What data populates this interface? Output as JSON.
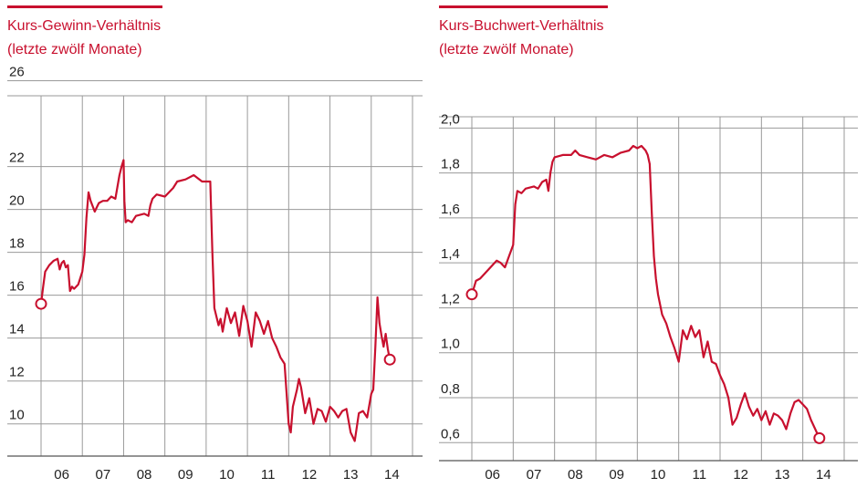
{
  "colors": {
    "accent": "#c8102e",
    "grid": "#9a9a9a",
    "axis_text": "#222222",
    "marker_fill": "#ffffff"
  },
  "chart_data": [
    {
      "type": "line",
      "title": "Kurs-Gewinn-Verhältnis",
      "subtitle": "(letzte zwölf Monate)",
      "x_tick_labels": [
        "06",
        "07",
        "08",
        "09",
        "10",
        "11",
        "12",
        "13",
        "14"
      ],
      "y_tick_labels": [
        "26",
        "22",
        "20",
        "18",
        "16",
        "14",
        "12",
        "10"
      ],
      "xlim": [
        2006.0,
        2015.0
      ],
      "ylim": [
        8.5,
        25.3
      ],
      "grid": true,
      "series": [
        {
          "x": [
            2006.0,
            2006.05,
            2006.1,
            2006.2,
            2006.3,
            2006.4,
            2006.45,
            2006.5,
            2006.55,
            2006.6,
            2006.65,
            2006.7,
            2006.75,
            2006.8,
            2006.9,
            2007.0,
            2007.05,
            2007.1,
            2007.15,
            2007.2,
            2007.3,
            2007.4,
            2007.5,
            2007.6,
            2007.7,
            2007.8,
            2007.9,
            2007.95,
            2008.0,
            2008.02,
            2008.05,
            2008.1,
            2008.2,
            2008.3,
            2008.5,
            2008.6,
            2008.65,
            2008.7,
            2008.8,
            2009.0,
            2009.2,
            2009.3,
            2009.5,
            2009.7,
            2009.9,
            2010.0,
            2010.1,
            2010.15,
            2010.2,
            2010.25,
            2010.3,
            2010.35,
            2010.4,
            2010.5,
            2010.6,
            2010.7,
            2010.8,
            2010.9,
            2011.0,
            2011.1,
            2011.2,
            2011.3,
            2011.4,
            2011.5,
            2011.6,
            2011.7,
            2011.8,
            2011.9,
            2012.0,
            2012.05,
            2012.1,
            2012.2,
            2012.25,
            2012.3,
            2012.4,
            2012.5,
            2012.6,
            2012.7,
            2012.8,
            2012.9,
            2013.0,
            2013.1,
            2013.2,
            2013.3,
            2013.4,
            2013.5,
            2013.6,
            2013.7,
            2013.8,
            2013.9,
            2014.0,
            2014.05,
            2014.1,
            2014.15,
            2014.2,
            2014.25,
            2014.3,
            2014.35,
            2014.4,
            2014.45
          ],
          "values": [
            15.6,
            16.4,
            17.1,
            17.4,
            17.6,
            17.7,
            17.2,
            17.5,
            17.6,
            17.3,
            17.4,
            16.2,
            16.4,
            16.3,
            16.5,
            17.1,
            17.9,
            19.6,
            20.8,
            20.4,
            19.9,
            20.3,
            20.4,
            20.4,
            20.6,
            20.5,
            21.6,
            22.0,
            22.3,
            20.4,
            19.4,
            19.5,
            19.4,
            19.7,
            19.8,
            19.7,
            20.2,
            20.5,
            20.7,
            20.6,
            21.0,
            21.3,
            21.4,
            21.6,
            21.3,
            21.3,
            21.3,
            18.0,
            15.4,
            15.0,
            14.6,
            14.9,
            14.3,
            15.4,
            14.7,
            15.2,
            14.1,
            15.5,
            14.8,
            13.6,
            15.2,
            14.8,
            14.2,
            14.8,
            14.0,
            13.6,
            13.1,
            12.8,
            10.0,
            9.6,
            10.8,
            11.6,
            12.1,
            11.7,
            10.5,
            11.2,
            10.0,
            10.7,
            10.6,
            10.1,
            10.8,
            10.6,
            10.3,
            10.6,
            10.7,
            9.6,
            9.2,
            10.5,
            10.6,
            10.3,
            11.4,
            11.6,
            13.6,
            15.9,
            14.7,
            14.1,
            13.6,
            14.2,
            13.5,
            13.0
          ]
        }
      ],
      "markers": [
        {
          "x": 2006.0,
          "y": 15.6
        },
        {
          "x": 2014.45,
          "y": 13.0
        }
      ]
    },
    {
      "type": "line",
      "title": "Kurs-Buchwert-Verhältnis",
      "subtitle": "(letzte zwölf Monate)",
      "x_tick_labels": [
        "06",
        "07",
        "08",
        "09",
        "10",
        "11",
        "12",
        "13",
        "14"
      ],
      "y_tick_labels": [
        "2,0",
        "1,8",
        "1,6",
        "1,4",
        "1,2",
        "1,0",
        "0,8",
        "0,6"
      ],
      "xlim": [
        2006.0,
        2015.0
      ],
      "ylim": [
        0.52,
        2.05
      ],
      "grid": true,
      "series": [
        {
          "x": [
            2006.0,
            2006.05,
            2006.1,
            2006.2,
            2006.3,
            2006.4,
            2006.5,
            2006.6,
            2006.7,
            2006.8,
            2006.9,
            2007.0,
            2007.05,
            2007.1,
            2007.2,
            2007.3,
            2007.5,
            2007.6,
            2007.7,
            2007.8,
            2007.85,
            2007.9,
            2007.95,
            2008.0,
            2008.2,
            2008.4,
            2008.5,
            2008.6,
            2008.8,
            2009.0,
            2009.2,
            2009.4,
            2009.6,
            2009.8,
            2009.9,
            2010.0,
            2010.1,
            2010.2,
            2010.25,
            2010.3,
            2010.35,
            2010.4,
            2010.45,
            2010.5,
            2010.6,
            2010.7,
            2010.8,
            2010.9,
            2011.0,
            2011.1,
            2011.2,
            2011.3,
            2011.4,
            2011.5,
            2011.6,
            2011.7,
            2011.8,
            2011.9,
            2012.0,
            2012.1,
            2012.2,
            2012.3,
            2012.4,
            2012.5,
            2012.6,
            2012.7,
            2012.8,
            2012.9,
            2013.0,
            2013.1,
            2013.2,
            2013.3,
            2013.4,
            2013.5,
            2013.6,
            2013.7,
            2013.8,
            2013.9,
            2014.0,
            2014.1,
            2014.2,
            2014.3,
            2014.4
          ],
          "values": [
            1.26,
            1.29,
            1.32,
            1.33,
            1.35,
            1.37,
            1.39,
            1.41,
            1.4,
            1.38,
            1.43,
            1.48,
            1.66,
            1.72,
            1.71,
            1.73,
            1.74,
            1.73,
            1.76,
            1.77,
            1.72,
            1.8,
            1.85,
            1.87,
            1.88,
            1.88,
            1.9,
            1.88,
            1.87,
            1.86,
            1.88,
            1.87,
            1.89,
            1.9,
            1.92,
            1.91,
            1.92,
            1.9,
            1.88,
            1.84,
            1.62,
            1.43,
            1.33,
            1.26,
            1.17,
            1.13,
            1.07,
            1.02,
            0.96,
            1.1,
            1.06,
            1.12,
            1.07,
            1.1,
            0.98,
            1.05,
            0.96,
            0.95,
            0.9,
            0.86,
            0.8,
            0.68,
            0.71,
            0.77,
            0.82,
            0.76,
            0.72,
            0.75,
            0.7,
            0.74,
            0.68,
            0.73,
            0.72,
            0.7,
            0.66,
            0.73,
            0.78,
            0.79,
            0.77,
            0.75,
            0.7,
            0.66,
            0.62
          ]
        }
      ],
      "markers": [
        {
          "x": 2006.0,
          "y": 1.26
        },
        {
          "x": 2014.4,
          "y": 0.62
        }
      ]
    }
  ]
}
